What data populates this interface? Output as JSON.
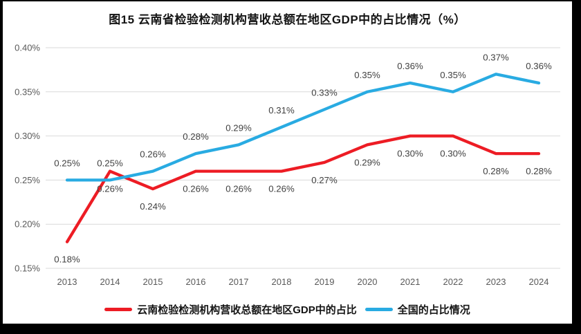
{
  "chart_data": {
    "type": "line",
    "title": "图15 云南省检验检测机构营收总额在地区GDP中的占比情况（%）",
    "categories": [
      "2013",
      "2014",
      "2015",
      "2016",
      "2017",
      "2018",
      "2019",
      "2020",
      "2021",
      "2022",
      "2023",
      "2024"
    ],
    "series": [
      {
        "name": "云南检验检测机构营收总额在地区GDP中的占比",
        "color": "#ed1c24",
        "label_position": "below",
        "values": [
          0.18,
          0.26,
          0.24,
          0.26,
          0.26,
          0.26,
          0.27,
          0.29,
          0.3,
          0.3,
          0.28,
          0.28
        ],
        "point_labels": [
          "0.18%",
          "0.26%",
          "0.24%",
          "0.26%",
          "0.26%",
          "0.26%",
          "0.27%",
          "0.29%",
          "0.30%",
          "0.30%",
          "0.28%",
          "0.28%"
        ]
      },
      {
        "name": "全国的占比情况",
        "color": "#29abe2",
        "label_position": "above",
        "values": [
          0.25,
          0.25,
          0.26,
          0.28,
          0.29,
          0.31,
          0.33,
          0.35,
          0.36,
          0.35,
          0.37,
          0.36
        ],
        "point_labels": [
          "0.25%",
          "0.25%",
          "0.26%",
          "0.28%",
          "0.29%",
          "0.31%",
          "0.33%",
          "0.35%",
          "0.36%",
          "0.35%",
          "0.37%",
          "0.36%"
        ]
      }
    ],
    "xlabel": "",
    "ylabel": "",
    "ylim": [
      0.15,
      0.4
    ],
    "ytick_labels": [
      "0.15%",
      "0.20%",
      "0.25%",
      "0.30%",
      "0.35%",
      "0.40%"
    ],
    "grid": "horizontal-only",
    "legend_position": "bottom",
    "axis_text_color": "#595959",
    "data_label_color": "#404040",
    "gridline_color": "#d9d9d9",
    "background_color": "#ffffff",
    "frame_color": "#000000"
  }
}
